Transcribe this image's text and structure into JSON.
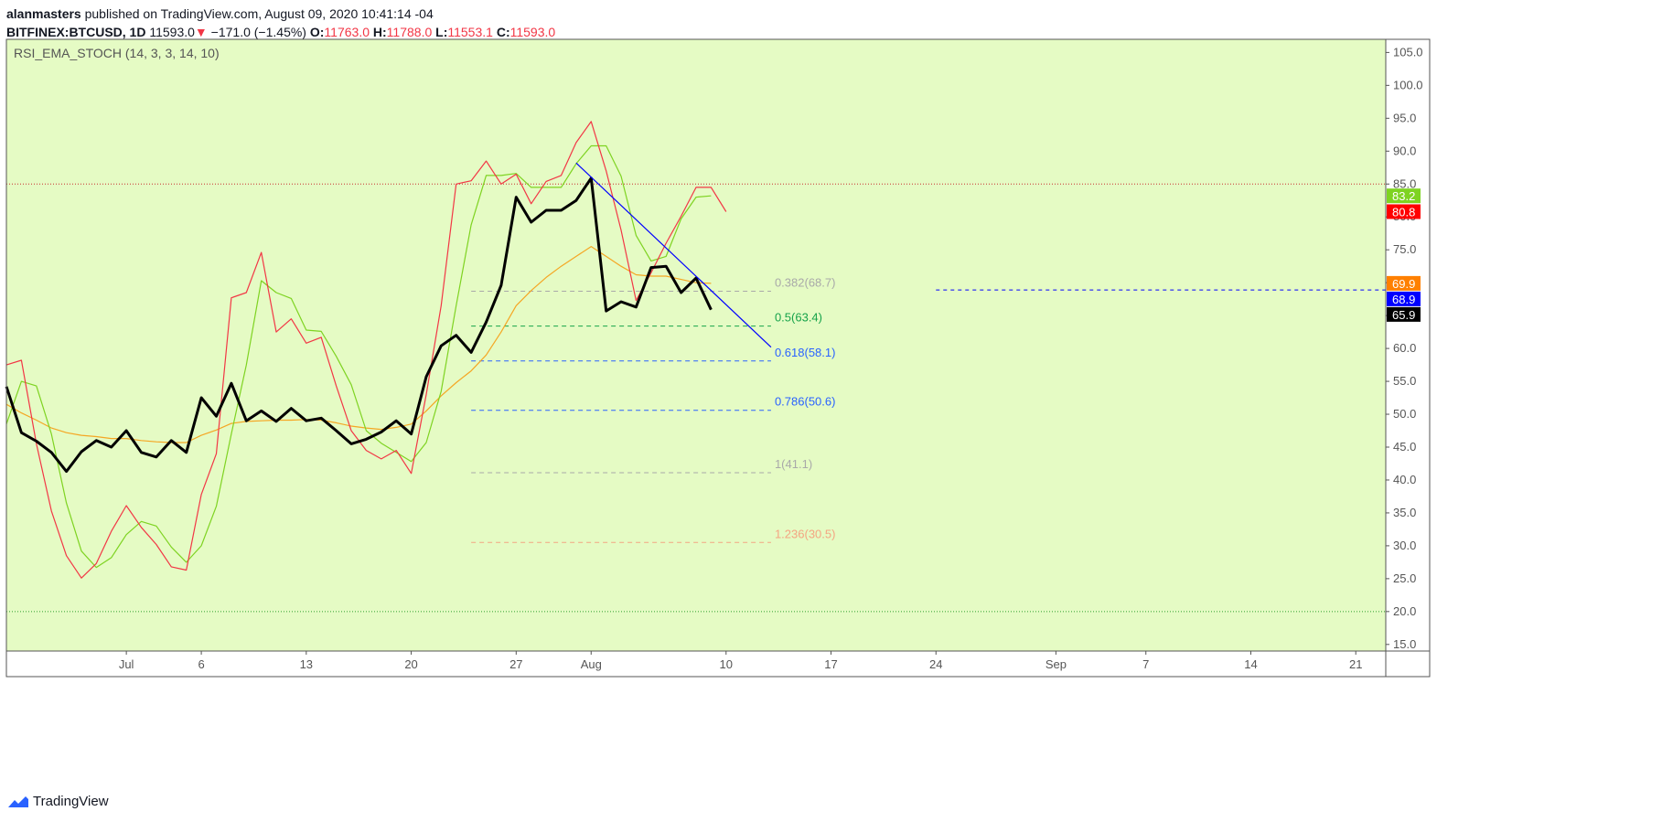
{
  "header": {
    "author": "alanmasters",
    "published_text": "published on TradingView.com, August 09, 2020 10:41:14 -04",
    "symbol": "BITFINEX:BTCUSD, 1D",
    "price": "11593.0",
    "change": "−171.0 (−1.45%)",
    "o_label": "O:",
    "o_value": "11763.0",
    "h_label": "H:",
    "h_value": "11788.0",
    "l_label": "L:",
    "l_value": "11553.1",
    "c_label": "C:",
    "c_value": "11593.0"
  },
  "footer": {
    "brand": "TradingView"
  },
  "colors": {
    "background": "#e5fbc4",
    "rsi": "#000000",
    "stoch_k": "#f23645",
    "stoch_d": "#7ed321",
    "ema": "#f5a623",
    "trendline": "#0000ff"
  },
  "chart_data": {
    "type": "line",
    "indicator_title": "RSI_EMA_STOCH (14, 3, 3, 14, 10)",
    "ylim": [
      14.0,
      107.0
    ],
    "yticks": [
      "105.0",
      "100.0",
      "95.0",
      "90.0",
      "85.0",
      "80.0",
      "75.0",
      "70.0",
      "65.0",
      "60.0",
      "55.0",
      "50.0",
      "45.0",
      "40.0",
      "35.0",
      "30.0",
      "25.0",
      "20.0",
      "15.0"
    ],
    "xticks": [
      "Jul",
      "6",
      "13",
      "20",
      "27",
      "Aug",
      "10",
      "17",
      "24",
      "Sep",
      "7",
      "14",
      "21"
    ],
    "xtick_days": [
      0,
      5,
      12,
      19,
      26,
      31,
      40,
      47,
      54,
      62,
      68,
      75,
      82
    ],
    "x_start_day": -8,
    "x_end_day": 84,
    "series": [
      {
        "key": "rsi",
        "start_day": -8,
        "values": [
          54.2,
          47.2,
          45.9,
          44.2,
          41.3,
          44.3,
          46.0,
          45.0,
          47.5,
          44.2,
          43.5,
          46.0,
          44.2,
          52.5,
          49.7,
          54.7,
          49.0,
          50.5,
          48.9,
          50.9,
          49.0,
          49.4,
          47.5,
          45.5,
          46.2,
          47.3,
          49.0,
          47.0,
          55.7,
          60.4,
          62.0,
          59.4,
          64.0,
          69.6,
          83.0,
          79.2,
          81.0,
          81.0,
          82.5,
          85.9,
          65.7,
          67.1,
          66.3,
          72.3,
          72.5,
          68.5,
          70.7,
          65.9
        ]
      },
      {
        "key": "stoch_k",
        "start_day": -8,
        "values": [
          57.5,
          58.2,
          45.5,
          35.3,
          28.5,
          25.1,
          27.3,
          32.2,
          36.1,
          32.8,
          30.2,
          26.8,
          26.3,
          37.8,
          44.0,
          67.7,
          68.5,
          74.6,
          62.5,
          64.5,
          60.8,
          61.7,
          54.3,
          47.5,
          44.5,
          43.2,
          44.5,
          41.0,
          53.0,
          66.5,
          85.0,
          85.5,
          88.5,
          85.0,
          86.5,
          82.0,
          85.4,
          86.3,
          91.3,
          94.5,
          87.0,
          78.0,
          67.3,
          71.5,
          76.0,
          80.1,
          84.5,
          84.5,
          80.8
        ]
      },
      {
        "key": "stoch_d",
        "start_day": -8,
        "values": [
          48.5,
          55.0,
          54.3,
          47.0,
          36.5,
          29.2,
          26.7,
          28.2,
          31.7,
          33.7,
          33.0,
          29.8,
          27.5,
          30.0,
          36.0,
          47.0,
          57.5,
          70.3,
          68.5,
          67.6,
          62.8,
          62.6,
          58.8,
          54.5,
          47.5,
          45.6,
          44.2,
          42.8,
          45.7,
          53.5,
          66.5,
          78.8,
          86.3,
          86.3,
          86.6,
          84.5,
          84.5,
          84.5,
          88.1,
          90.8,
          90.8,
          86.2,
          77.2,
          73.3,
          74.0,
          79.7,
          83.0,
          83.2
        ]
      },
      {
        "key": "ema",
        "start_day": -8,
        "values": [
          51.5,
          50.2,
          49.1,
          47.9,
          47.2,
          46.8,
          46.6,
          46.3,
          46.3,
          46.0,
          45.8,
          45.7,
          45.7,
          46.8,
          47.6,
          48.6,
          48.9,
          49.0,
          49.1,
          49.1,
          49.2,
          49.1,
          48.7,
          48.2,
          47.9,
          47.7,
          48.0,
          48.5,
          50.5,
          52.8,
          54.8,
          56.6,
          59.0,
          62.5,
          66.5,
          68.8,
          70.8,
          72.5,
          74.0,
          75.5,
          74.0,
          72.5,
          71.2,
          71.0,
          71.0,
          70.5,
          70.0,
          69.9
        ]
      }
    ],
    "levels": [
      {
        "key": "upper",
        "y": 85.0,
        "color": "#c7302c"
      },
      {
        "key": "lower",
        "y": 20.0,
        "color": "#2ca02c"
      }
    ],
    "fib_levels": [
      {
        "label": "0.382(68.7)",
        "y": 68.7,
        "color": "#a9a9a9"
      },
      {
        "label": "0.5(63.4)",
        "y": 63.4,
        "color": "#16a34a"
      },
      {
        "label": "0.618(58.1)",
        "y": 58.1,
        "color": "#2962ff"
      },
      {
        "label": "0.786(50.6)",
        "y": 50.6,
        "color": "#2962ff"
      },
      {
        "label": "1(41.1)",
        "y": 41.1,
        "color": "#a9a9a9"
      },
      {
        "label": "1.236(30.5)",
        "y": 30.5,
        "color": "#f4a582"
      }
    ],
    "fib_x_start_day": 23,
    "fib_x_end_day": 43,
    "trendline": {
      "start": [
        30,
        88.2
      ],
      "end": [
        43,
        60.2
      ]
    },
    "horizontal_ray": {
      "y": 68.9,
      "start_day": 54
    },
    "price_labels": [
      {
        "text": "83.2",
        "y": 83.2,
        "color": "#7ed321"
      },
      {
        "text": "80.8",
        "y": 80.8,
        "color": "#ff0000"
      },
      {
        "text": "69.9",
        "y": 69.9,
        "color": "#ff8000"
      },
      {
        "text": "68.9",
        "y": 68.9,
        "color": "#0000ff"
      },
      {
        "text": "65.9",
        "y": 65.9,
        "color": "#000000"
      }
    ]
  }
}
